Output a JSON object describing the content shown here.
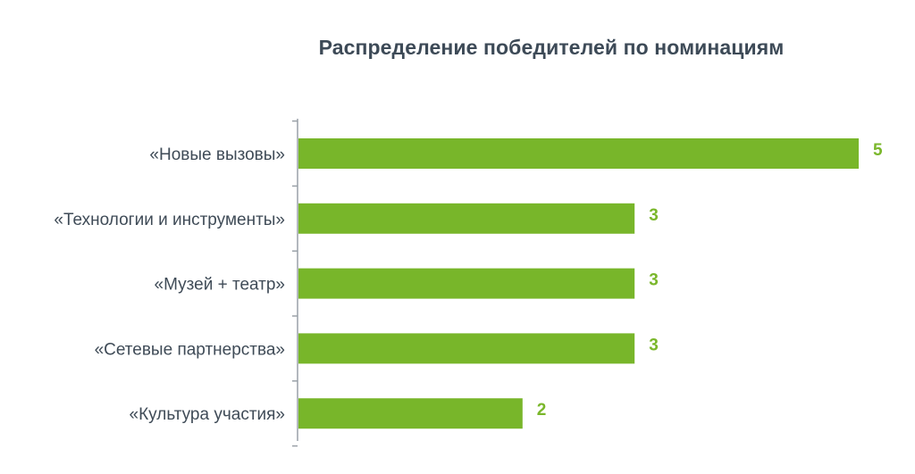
{
  "colors": {
    "bar": "#78b62a",
    "value_label": "#7ab72b",
    "title": "#3d4a57",
    "axis": "#9aa1a8",
    "category_label": "#3f4b57"
  },
  "chart_data": {
    "type": "bar",
    "orientation": "horizontal",
    "title": "Распределение победителей по номинациям",
    "categories": [
      "«Новые вызовы»",
      "«Технологии и инструменты»",
      "«Музей + театр»",
      "«Сетевые партнерства»",
      "«Культура участия»"
    ],
    "values": [
      5,
      3,
      3,
      3,
      2
    ],
    "xlim": [
      0,
      5
    ],
    "grid": false,
    "legend": "none",
    "data_labels": true
  }
}
